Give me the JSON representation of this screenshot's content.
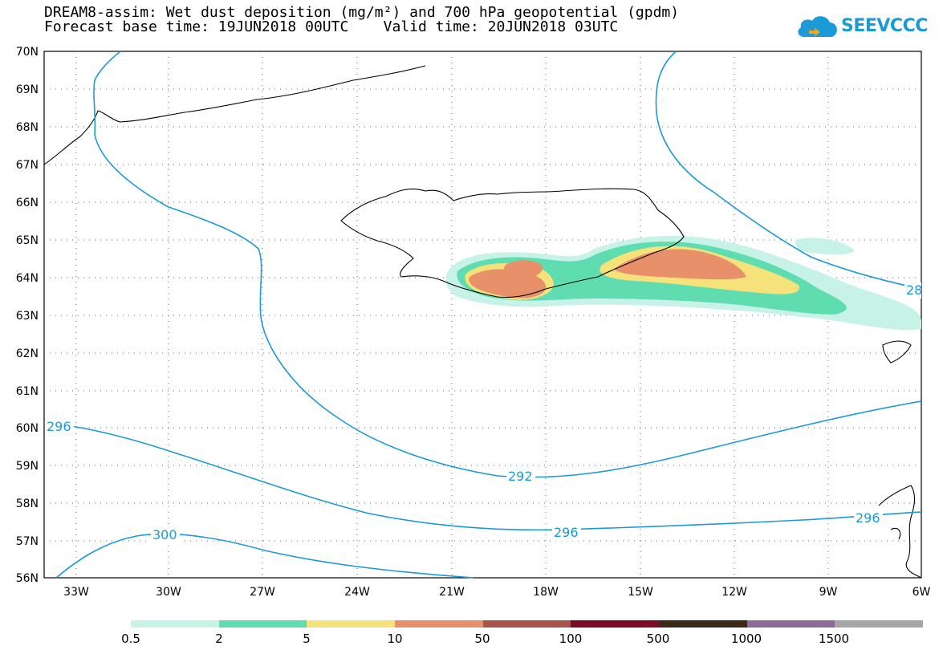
{
  "header": {
    "title_line1": "DREAM8-assim: Wet dust deposition (mg/m²) and 700 hPa geopotential (gpdm)",
    "title_line2": "Forecast base time: 19JUN2018 00UTC    Valid time: 20JUN2018 03UTC"
  },
  "logo": {
    "text": "SEEVCCC",
    "icon": "cloud-icon",
    "color": "#1a9ad6"
  },
  "map": {
    "lat_labels": [
      "70N",
      "69N",
      "68N",
      "67N",
      "66N",
      "65N",
      "64N",
      "63N",
      "62N",
      "61N",
      "60N",
      "59N",
      "58N",
      "57N",
      "56N"
    ],
    "lon_labels": [
      "33W",
      "30W",
      "27W",
      "24W",
      "21W",
      "18W",
      "15W",
      "12W",
      "9W",
      "6W"
    ],
    "contour_labels": [
      "296",
      "292",
      "296",
      "296",
      "300",
      "28"
    ],
    "contour_color": "#1a9ad6",
    "coastline_color": "#000000"
  },
  "legend": {
    "colors": [
      "#c6f2e8",
      "#5fdcb0",
      "#f6e27a",
      "#e8906a",
      "#a85448",
      "#7a0c2a",
      "#3a2a1a",
      "#8e6a9a",
      "#a6a6a6"
    ],
    "labels": [
      "0.5",
      "2",
      "5",
      "10",
      "50",
      "100",
      "500",
      "1000",
      "1500"
    ]
  }
}
